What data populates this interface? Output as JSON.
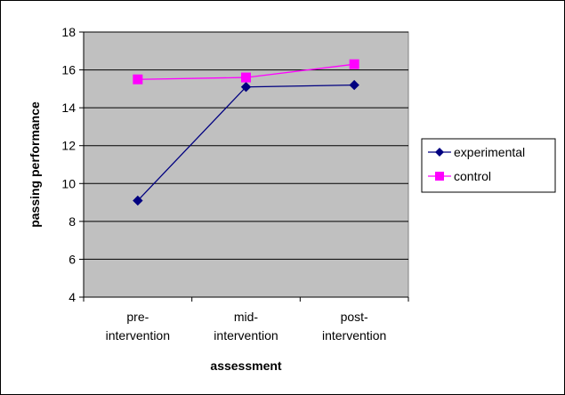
{
  "chart_data": {
    "type": "line",
    "title": "",
    "xlabel": "assessment",
    "ylabel": "passing performance",
    "ylim": [
      4,
      18
    ],
    "yticks": [
      4,
      6,
      8,
      10,
      12,
      14,
      16,
      18
    ],
    "grid": true,
    "legend_position": "right",
    "categories": [
      [
        "pre-",
        "intervention"
      ],
      [
        "mid-",
        "intervention"
      ],
      [
        "post-",
        "intervention"
      ]
    ],
    "series": [
      {
        "name": "experimental",
        "values": [
          9.1,
          15.1,
          15.2
        ],
        "color": "#000080",
        "marker": "diamond"
      },
      {
        "name": "control",
        "values": [
          15.5,
          15.6,
          16.3
        ],
        "color": "#ff00ff",
        "marker": "square"
      }
    ],
    "plot_background": "#c0c0c0"
  }
}
